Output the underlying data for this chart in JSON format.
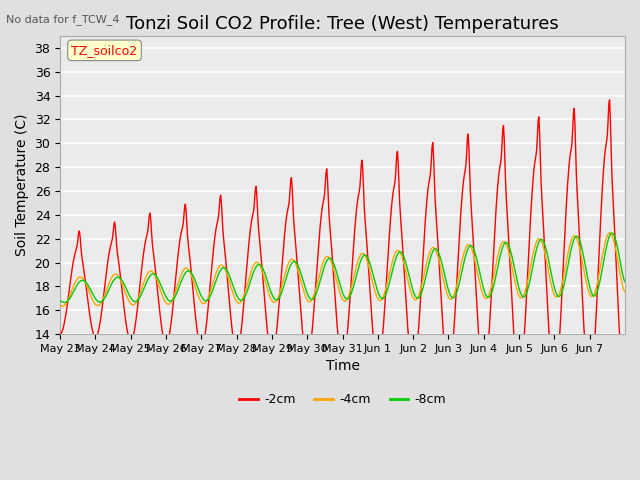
{
  "title": "Tonzi Soil CO2 Profile: Tree (West) Temperatures",
  "subtitle": "No data for f_TCW_4",
  "xlabel": "Time",
  "ylabel": "Soil Temperature (C)",
  "legend_label": "TZ_soilco2",
  "ylim": [
    14,
    39
  ],
  "yticks": [
    14,
    16,
    18,
    20,
    22,
    24,
    26,
    28,
    30,
    32,
    34,
    36,
    38
  ],
  "xtick_labels": [
    "May 23",
    "May 24",
    "May 25",
    "May 26",
    "May 27",
    "May 28",
    "May 29",
    "May 30",
    "May 31",
    "Jun 1",
    "Jun 2",
    "Jun 3",
    "Jun 4",
    "Jun 5",
    "Jun 6",
    "Jun 7"
  ],
  "line_colors": {
    "neg2cm": "#ff0000",
    "neg4cm": "#ffa500",
    "neg8cm": "#00cc00"
  },
  "bg_color": "#e0e0e0",
  "plot_bg_color": "#ebebeb",
  "grid_color": "#ffffff",
  "title_fontsize": 13,
  "axis_fontsize": 10,
  "tick_fontsize": 9
}
